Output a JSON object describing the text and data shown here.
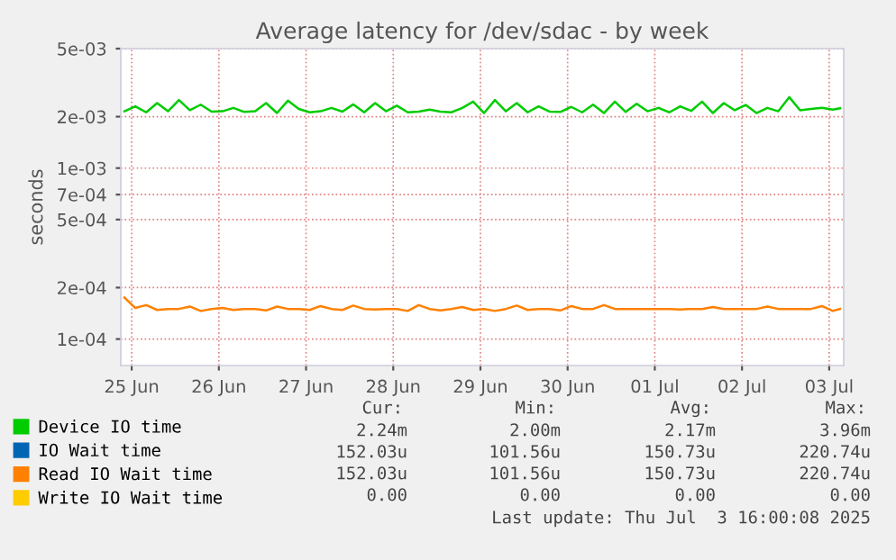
{
  "chart_data": {
    "type": "line",
    "title": "Average latency for /dev/sdac - by week",
    "ylabel": "seconds",
    "log": "y",
    "grid": true,
    "legend": "bottom",
    "marker": "none",
    "line_style": "solid",
    "xlim": [
      "2025-06-25T09:00",
      "2025-07-03T16:00"
    ],
    "xticks": [
      {
        "value": "2025-06-25T12:00",
        "label": "25 Jun"
      },
      {
        "value": "2025-06-26T12:00",
        "label": "26 Jun"
      },
      {
        "value": "2025-06-27T12:00",
        "label": "27 Jun"
      },
      {
        "value": "2025-06-28T12:00",
        "label": "28 Jun"
      },
      {
        "value": "2025-06-29T12:00",
        "label": "29 Jun"
      },
      {
        "value": "2025-06-30T12:00",
        "label": "30 Jun"
      },
      {
        "value": "2025-07-01T12:00",
        "label": "01 Jul"
      },
      {
        "value": "2025-07-02T12:00",
        "label": "02 Jul"
      },
      {
        "value": "2025-07-03T12:00",
        "label": "03 Jul"
      }
    ],
    "ylim": [
      7e-05,
      0.005
    ],
    "yticks": [
      {
        "value": 0.005,
        "label": "5e-03"
      },
      {
        "value": 0.002,
        "label": "2e-03"
      },
      {
        "value": 0.001,
        "label": "1e-03"
      },
      {
        "value": 0.0007,
        "label": "7e-04"
      },
      {
        "value": 0.0005,
        "label": "5e-04"
      },
      {
        "value": 0.0002,
        "label": "2e-04"
      },
      {
        "value": 0.0001,
        "label": "1e-04"
      }
    ],
    "x": [
      "2025-06-25T10:00",
      "2025-06-25T13:00",
      "2025-06-25T16:00",
      "2025-06-25T19:00",
      "2025-06-25T22:00",
      "2025-06-26T01:00",
      "2025-06-26T04:00",
      "2025-06-26T07:00",
      "2025-06-26T10:00",
      "2025-06-26T13:00",
      "2025-06-26T16:00",
      "2025-06-26T19:00",
      "2025-06-26T22:00",
      "2025-06-27T01:00",
      "2025-06-27T04:00",
      "2025-06-27T07:00",
      "2025-06-27T10:00",
      "2025-06-27T13:00",
      "2025-06-27T16:00",
      "2025-06-27T19:00",
      "2025-06-27T22:00",
      "2025-06-28T01:00",
      "2025-06-28T04:00",
      "2025-06-28T07:00",
      "2025-06-28T10:00",
      "2025-06-28T13:00",
      "2025-06-28T16:00",
      "2025-06-28T19:00",
      "2025-06-28T22:00",
      "2025-06-29T01:00",
      "2025-06-29T04:00",
      "2025-06-29T07:00",
      "2025-06-29T10:00",
      "2025-06-29T13:00",
      "2025-06-29T16:00",
      "2025-06-29T19:00",
      "2025-06-29T22:00",
      "2025-06-30T01:00",
      "2025-06-30T04:00",
      "2025-06-30T07:00",
      "2025-06-30T10:00",
      "2025-06-30T13:00",
      "2025-06-30T16:00",
      "2025-06-30T19:00",
      "2025-06-30T22:00",
      "2025-07-01T01:00",
      "2025-07-01T04:00",
      "2025-07-01T07:00",
      "2025-07-01T10:00",
      "2025-07-01T13:00",
      "2025-07-01T16:00",
      "2025-07-01T19:00",
      "2025-07-01T22:00",
      "2025-07-02T01:00",
      "2025-07-02T04:00",
      "2025-07-02T07:00",
      "2025-07-02T10:00",
      "2025-07-02T13:00",
      "2025-07-02T16:00",
      "2025-07-02T19:00",
      "2025-07-02T22:00",
      "2025-07-03T01:00",
      "2025-07-03T04:00",
      "2025-07-03T07:00",
      "2025-07-03T10:00",
      "2025-07-03T13:00",
      "2025-07-03T15:00"
    ],
    "series": [
      {
        "name": "Device IO time",
        "color": "#00cc00",
        "values": [
          0.00215,
          0.0023,
          0.00212,
          0.0024,
          0.00215,
          0.0025,
          0.00218,
          0.00235,
          0.00214,
          0.00215,
          0.00225,
          0.00213,
          0.00215,
          0.0024,
          0.0021,
          0.00248,
          0.00222,
          0.00212,
          0.00215,
          0.00225,
          0.00214,
          0.00236,
          0.00212,
          0.0024,
          0.00215,
          0.00232,
          0.00212,
          0.00214,
          0.0022,
          0.00214,
          0.00212,
          0.00225,
          0.00245,
          0.0021,
          0.0025,
          0.00215,
          0.0024,
          0.00212,
          0.0023,
          0.00214,
          0.00213,
          0.00228,
          0.00212,
          0.00235,
          0.0021,
          0.00245,
          0.00213,
          0.00238,
          0.00215,
          0.00225,
          0.00212,
          0.0023,
          0.00216,
          0.00245,
          0.0021,
          0.0024,
          0.00218,
          0.00234,
          0.0021,
          0.00225,
          0.00215,
          0.0026,
          0.00218,
          0.00222,
          0.00225,
          0.0022,
          0.00224
        ]
      },
      {
        "name": "IO Wait time",
        "color": "#0066b3",
        "values": [
          null,
          null,
          null,
          null,
          null,
          null,
          null,
          null,
          null,
          null,
          null,
          null,
          null,
          null,
          null,
          null,
          null,
          null,
          null,
          null,
          null,
          null,
          null,
          null,
          null,
          null,
          null,
          null,
          null,
          null,
          null,
          null,
          null,
          null,
          null,
          null,
          null,
          null,
          null,
          null,
          null,
          null,
          null,
          null,
          null,
          null,
          null,
          null,
          null,
          null,
          null,
          null,
          null,
          null,
          null,
          null,
          null,
          null,
          null,
          null,
          null,
          null,
          null,
          null,
          null,
          null,
          null
        ]
      },
      {
        "name": "Read IO Wait time",
        "color": "#ff8000",
        "values": [
          0.000175,
          0.000152,
          0.000158,
          0.000148,
          0.00015,
          0.00015,
          0.000155,
          0.000146,
          0.00015,
          0.000152,
          0.000148,
          0.00015,
          0.00015,
          0.000147,
          0.000155,
          0.00015,
          0.00015,
          0.000148,
          0.000156,
          0.00015,
          0.000148,
          0.000157,
          0.00015,
          0.000149,
          0.00015,
          0.00015,
          0.000146,
          0.000158,
          0.00015,
          0.000147,
          0.00015,
          0.000154,
          0.000148,
          0.00015,
          0.000146,
          0.00015,
          0.000157,
          0.000148,
          0.00015,
          0.00015,
          0.000147,
          0.000156,
          0.00015,
          0.00015,
          0.000158,
          0.00015,
          0.00015,
          0.00015,
          0.00015,
          0.00015,
          0.00015,
          0.000149,
          0.00015,
          0.00015,
          0.000154,
          0.00015,
          0.00015,
          0.00015,
          0.00015,
          0.000155,
          0.00015,
          0.00015,
          0.00015,
          0.00015,
          0.000156,
          0.000146,
          0.00015
        ]
      },
      {
        "name": "Write IO Wait time",
        "color": "#ffcc00",
        "values": [
          null,
          null,
          null,
          null,
          null,
          null,
          null,
          null,
          null,
          null,
          null,
          null,
          null,
          null,
          null,
          null,
          null,
          null,
          null,
          null,
          null,
          null,
          null,
          null,
          null,
          null,
          null,
          null,
          null,
          null,
          null,
          null,
          null,
          null,
          null,
          null,
          null,
          null,
          null,
          null,
          null,
          null,
          null,
          null,
          null,
          null,
          null,
          null,
          null,
          null,
          null,
          null,
          null,
          null,
          null,
          null,
          null,
          null,
          null,
          null,
          null,
          null,
          null,
          null,
          null,
          null,
          null
        ]
      }
    ],
    "annotations": [
      "Cur:",
      "Min:",
      "Avg:",
      "Max:",
      "2.24m",
      "2.00m",
      "2.17m",
      "3.96m",
      "152.03u",
      "101.56u",
      "150.73u",
      "220.74u",
      "152.03u",
      "101.56u",
      "150.73u",
      "220.74u",
      "0.00",
      "0.00",
      "0.00",
      "0.00",
      "Last update: Thu Jul  3 16:00:08 2025"
    ]
  }
}
